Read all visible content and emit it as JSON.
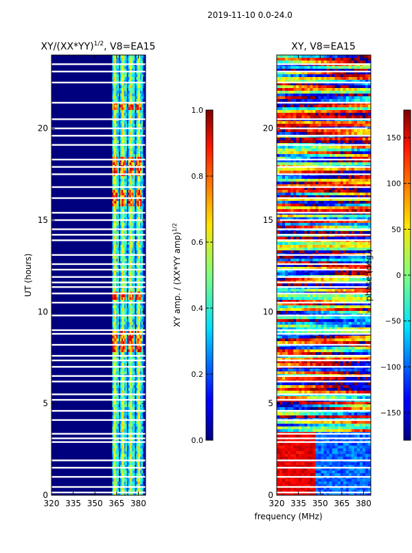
{
  "suptitle": "2019-11-10 0.0-24.0",
  "chart_data": [
    {
      "type": "heatmap",
      "title_main": "XY/(XX*YY)",
      "title_exp": "1/2",
      "title_tail": ", V8=EA15",
      "xlabel": "",
      "ylabel": "UT (hours)",
      "xlim": [
        320,
        385
      ],
      "ylim": [
        0,
        24
      ],
      "xticks": [
        320,
        335,
        350,
        365,
        380
      ],
      "yticks": [
        0,
        5,
        10,
        15,
        20
      ],
      "data_band": [
        362,
        384
      ],
      "colormap": "jet",
      "colorbar": {
        "label_main": "XY amp. / (XX*YY amp)",
        "label_exp": "1/2",
        "range": [
          0.0,
          1.0
        ],
        "ticks": [
          "0.0",
          "0.2",
          "0.4",
          "0.6",
          "0.8",
          "1.0"
        ]
      }
    },
    {
      "type": "heatmap",
      "title_main": "XY, V8=EA15",
      "title_exp": "",
      "title_tail": "",
      "xlabel": "frequency (MHz)",
      "ylabel": "",
      "xlim": [
        320,
        385
      ],
      "ylim": [
        0,
        24
      ],
      "xticks": [
        320,
        335,
        350,
        365,
        380
      ],
      "yticks": [
        0,
        5,
        10,
        15,
        20
      ],
      "colormap": "jet",
      "colorbar": {
        "label_main": "phase (deg.)",
        "range": [
          -180,
          180
        ],
        "ticks": [
          "−150",
          "−100",
          "−50",
          "0",
          "50",
          "100",
          "150"
        ]
      }
    }
  ],
  "flagged_hours": [
    0.15,
    0.45,
    1.0,
    1.5,
    1.9,
    2.9,
    3.1,
    3.35,
    4.1,
    4.6,
    5.2,
    5.5,
    6.2,
    6.5,
    7.0,
    7.35,
    7.6,
    8.2,
    8.8,
    9.0,
    9.8,
    10.5,
    11.0,
    11.35,
    11.6,
    11.9,
    12.3,
    12.6,
    13.1,
    13.9,
    14.2,
    14.5,
    15.0,
    15.4,
    16.2,
    16.8,
    17.5,
    17.9,
    18.3,
    19.1,
    19.6,
    20.0,
    20.5,
    21.4,
    22.5,
    23.1,
    23.5
  ]
}
